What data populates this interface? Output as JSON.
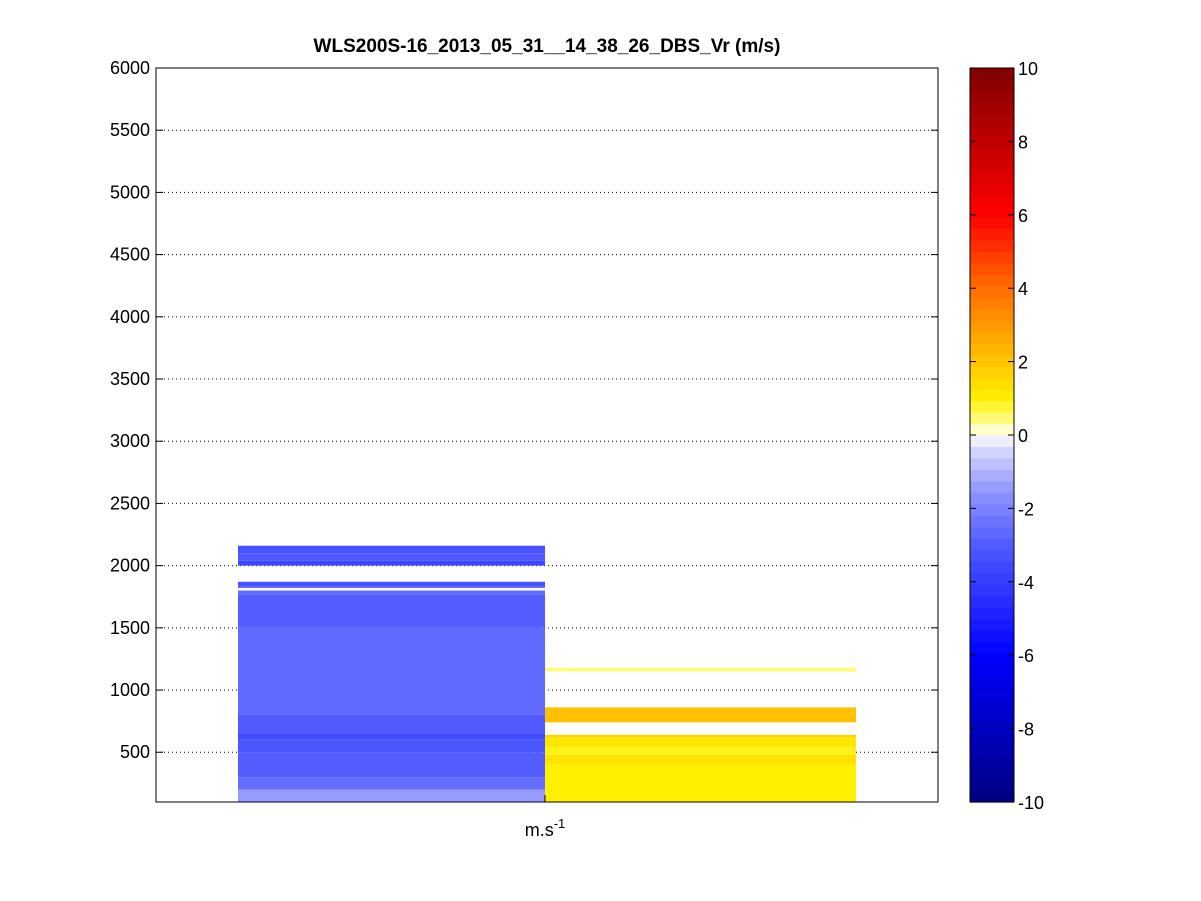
{
  "chart_data": {
    "type": "heatmap",
    "title": "WLS200S-16_2013_05_31__14_38_26_DBS_Vr (m/s)",
    "xlabel": "m.s",
    "xlabel_superscript": "-1",
    "ylabel": "",
    "ylim": [
      100,
      6000
    ],
    "yticks": [
      500,
      1000,
      1500,
      2000,
      2500,
      3000,
      3500,
      4000,
      4500,
      5000,
      5500,
      6000
    ],
    "grid": "y-dotted",
    "columns": [
      {
        "column": 1,
        "bands": [
          {
            "from": 100,
            "to": 200,
            "value": -1.4
          },
          {
            "from": 200,
            "to": 300,
            "value": -2.5
          },
          {
            "from": 300,
            "to": 500,
            "value": -2.9
          },
          {
            "from": 500,
            "to": 600,
            "value": -3.1
          },
          {
            "from": 600,
            "to": 650,
            "value": -3.5
          },
          {
            "from": 650,
            "to": 800,
            "value": -3.0
          },
          {
            "from": 800,
            "to": 1500,
            "value": -2.6
          },
          {
            "from": 1500,
            "to": 1770,
            "value": -2.9
          },
          {
            "from": 1770,
            "to": 1800,
            "value": -2.5
          },
          {
            "from": 1800,
            "to": 1820,
            "value": 0.0
          },
          {
            "from": 1820,
            "to": 1830,
            "value": -2.5
          },
          {
            "from": 1830,
            "to": 1870,
            "value": -3.3
          },
          {
            "from": 2000,
            "to": 2040,
            "value": -3.6
          },
          {
            "from": 2040,
            "to": 2100,
            "value": -3.0
          },
          {
            "from": 2100,
            "to": 2160,
            "value": -3.3
          }
        ]
      },
      {
        "column": 2,
        "bands": [
          {
            "from": 100,
            "to": 400,
            "value": 1.0
          },
          {
            "from": 400,
            "to": 480,
            "value": 1.3
          },
          {
            "from": 480,
            "to": 540,
            "value": 0.9
          },
          {
            "from": 540,
            "to": 620,
            "value": 1.2
          },
          {
            "from": 620,
            "to": 640,
            "value": 1.6
          },
          {
            "from": 740,
            "to": 860,
            "value": 2.1
          },
          {
            "from": 1150,
            "to": 1180,
            "value": 0.5
          }
        ]
      }
    ],
    "colorbar": {
      "min": -10,
      "max": 10,
      "ticks": [
        -10,
        -8,
        -6,
        -4,
        -2,
        0,
        2,
        4,
        6,
        8,
        10
      ],
      "colormap": "blue-white-yellow-red"
    }
  }
}
